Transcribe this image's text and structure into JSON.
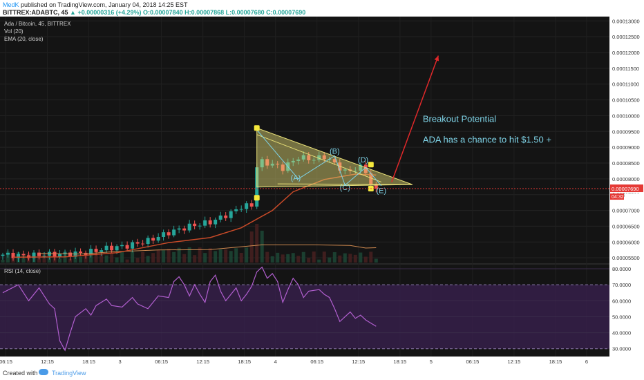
{
  "header": {
    "author": "MedK",
    "published": "published on TradingView.com, January 04, 2018 14:25 EST",
    "symbol": "BITTREX:ADABTC, 45",
    "change": "▲ +0.00000316 (+4.29%)",
    "ohlc": "O:0.00007840 H:0.00007868 L:0.00007680 C:0.00007690"
  },
  "legend": {
    "title": "Ada / Bitcoin, 45, BITTREX",
    "vol": "Vol (20)",
    "ema": "EMA (20, close)",
    "rsi": "RSI (14, close)"
  },
  "footer": {
    "created": "Created with",
    "brand": "TradingView"
  },
  "colors": {
    "up": "#26a69a",
    "down": "#ef5350",
    "triangle": "#e8e078",
    "annotation": "#7fd4e8",
    "arrow": "#e0282a",
    "ema": "#c84a28",
    "rsi": "#b25fd0",
    "rsi_band": "#3a2050",
    "handle": "#f5e83c",
    "price_tag": "#e53935"
  },
  "chart_data": {
    "type": "candlestick",
    "y_ticks": [
      "0.00013000",
      "0.00012500",
      "0.00012000",
      "0.00011500",
      "0.00011000",
      "0.00010500",
      "0.00010000",
      "0.00009500",
      "0.00009000",
      "0.00008500",
      "0.00008000",
      "0.00007500",
      "0.00007000",
      "0.00006500",
      "0.00006000",
      "0.00005500"
    ],
    "ylim": [
      5.35e-05,
      0.0001305
    ],
    "price_tag": "0.00007690",
    "price_tag2": "04:32",
    "price_tag_partial": "0.0000",
    "last_price": 7.69e-05,
    "x_ticks": [
      {
        "label": "06:15",
        "x": 0.6
      },
      {
        "label": "12:15",
        "x": 8.6
      },
      {
        "label": "18:15",
        "x": 16.6
      },
      {
        "label": "3",
        "x": 22.6
      },
      {
        "label": "06:15",
        "x": 30.6
      },
      {
        "label": "12:15",
        "x": 38.6
      },
      {
        "label": "18:15",
        "x": 46.6
      },
      {
        "label": "4",
        "x": 52.6
      },
      {
        "label": "06:15",
        "x": 60.6
      },
      {
        "label": "12:15",
        "x": 68.6
      },
      {
        "label": "18:15",
        "x": 76.6
      },
      {
        "label": "5",
        "x": 82.6
      },
      {
        "label": "06:15",
        "x": 90.6
      },
      {
        "label": "12:15",
        "x": 98.6
      },
      {
        "label": "18:15",
        "x": 106.6
      },
      {
        "label": "6",
        "x": 112.6
      }
    ],
    "xlim": [
      0,
      117
    ],
    "anchors": [
      [
        0,
        5.6e-05
      ],
      [
        4,
        5.56e-05
      ],
      [
        8,
        5.6e-05
      ],
      [
        12,
        5.61e-05
      ],
      [
        16,
        5.66e-05
      ],
      [
        20,
        5.8e-05
      ],
      [
        24,
        5.88e-05
      ],
      [
        28,
        6.04e-05
      ],
      [
        32,
        6.3e-05
      ],
      [
        36,
        6.5e-05
      ],
      [
        40,
        6.63e-05
      ],
      [
        44,
        6.92e-05
      ],
      [
        46,
        7.12e-05
      ],
      [
        48,
        7.16e-05
      ],
      [
        49,
        8.4e-05
      ],
      [
        50,
        8.54e-05
      ],
      [
        52,
        8.46e-05
      ],
      [
        54,
        8.34e-05
      ],
      [
        57,
        8.68e-05
      ],
      [
        60,
        8.62e-05
      ],
      [
        62,
        8.71e-05
      ],
      [
        64,
        8.48e-05
      ],
      [
        66,
        8.22e-05
      ],
      [
        68,
        8.31e-05
      ],
      [
        69,
        8.36e-05
      ],
      [
        70,
        8.24e-05
      ],
      [
        71,
        7.84e-05
      ],
      [
        72,
        7.69e-05
      ]
    ],
    "ema_points": [
      [
        2,
        5.52e-05
      ],
      [
        12,
        5.53e-05
      ],
      [
        22,
        5.66e-05
      ],
      [
        32,
        5.98e-05
      ],
      [
        40,
        6.14e-05
      ],
      [
        46,
        6.45e-05
      ],
      [
        52,
        7e-05
      ],
      [
        56,
        7.59e-05
      ],
      [
        62,
        7.98e-05
      ],
      [
        68,
        8.15e-05
      ],
      [
        72,
        8.12e-05
      ]
    ],
    "vol_points": [
      [
        7,
        5.64e-05
      ],
      [
        15,
        5.62e-05
      ],
      [
        21,
        5.69e-05
      ],
      [
        30,
        5.75e-05
      ],
      [
        40,
        5.76e-05
      ],
      [
        50,
        5.91e-05
      ],
      [
        60,
        5.91e-05
      ],
      [
        67,
        5.89e-05
      ],
      [
        70,
        5.81e-05
      ],
      [
        72,
        5.82e-05
      ]
    ],
    "triangle": {
      "top": [
        49,
        9.61e-05
      ],
      "bottom": [
        49,
        7.74e-05
      ],
      "apex": [
        79,
        7.82e-05
      ],
      "upper_line": [
        [
          49,
          9.4e-05
        ],
        [
          73,
          7.9e-05
        ]
      ],
      "lower_line": [
        [
          53,
          7.84e-05
        ],
        [
          79,
          7.82e-05
        ]
      ]
    },
    "zigzag": [
      [
        49,
        9.55e-05
      ],
      [
        57,
        8e-05
      ],
      [
        64,
        8.73e-05
      ],
      [
        66,
        7.8e-05
      ],
      [
        70,
        8.36e-05
      ],
      [
        73,
        7.78e-05
      ]
    ],
    "handles": [
      [
        49,
        9.61e-05
      ],
      [
        49,
        7.4e-05
      ],
      [
        71,
        8.45e-05
      ],
      [
        71,
        7.69e-05
      ]
    ],
    "arrow": {
      "from": [
        75,
        7.9e-05
      ],
      "to": [
        84,
        0.000119
      ]
    },
    "labels": [
      {
        "text": "(A)",
        "x": 56.5,
        "y": 7.95e-05
      },
      {
        "text": "(B)",
        "x": 64,
        "y": 8.8e-05
      },
      {
        "text": "(C)",
        "x": 66,
        "y": 7.65e-05
      },
      {
        "text": "(D)",
        "x": 69.5,
        "y": 8.52e-05
      },
      {
        "text": "(E)",
        "x": 73,
        "y": 7.55e-05
      }
    ],
    "annotation": [
      "Breakout Potential",
      "ADA has a chance to hit $1.50 +"
    ],
    "annotation_pos": {
      "x": 81,
      "y1": 9.8e-05,
      "y2": 9.15e-05
    },
    "rsi": {
      "ylim": [
        26,
        83
      ],
      "ticks": [
        "80.0000",
        "70.0000",
        "60.0000",
        "50.0000",
        "40.0000",
        "30.0000"
      ],
      "tick_values": [
        80,
        70,
        60,
        50,
        40,
        30
      ],
      "band": [
        30,
        70
      ],
      "points": [
        [
          0,
          65
        ],
        [
          3,
          70
        ],
        [
          5,
          60
        ],
        [
          7,
          68
        ],
        [
          9,
          58
        ],
        [
          10,
          55
        ],
        [
          11,
          35
        ],
        [
          12,
          29
        ],
        [
          13,
          40
        ],
        [
          14,
          50
        ],
        [
          16,
          55
        ],
        [
          17,
          51
        ],
        [
          18,
          57
        ],
        [
          20,
          61
        ],
        [
          21,
          57
        ],
        [
          23,
          56
        ],
        [
          25,
          62
        ],
        [
          26,
          58
        ],
        [
          28,
          55
        ],
        [
          30,
          63
        ],
        [
          32,
          62
        ],
        [
          33,
          72
        ],
        [
          34,
          75
        ],
        [
          35,
          70
        ],
        [
          36,
          63
        ],
        [
          37,
          70
        ],
        [
          38,
          64
        ],
        [
          39,
          59
        ],
        [
          40,
          72
        ],
        [
          41,
          76
        ],
        [
          42,
          66
        ],
        [
          43,
          60
        ],
        [
          44,
          64
        ],
        [
          45,
          68
        ],
        [
          46,
          60
        ],
        [
          47,
          64
        ],
        [
          48,
          69
        ],
        [
          49,
          78
        ],
        [
          50,
          81
        ],
        [
          51,
          74
        ],
        [
          52,
          77
        ],
        [
          53,
          72
        ],
        [
          54,
          59
        ],
        [
          55,
          67
        ],
        [
          56,
          74
        ],
        [
          57,
          70
        ],
        [
          58,
          62
        ],
        [
          59,
          66
        ],
        [
          61,
          67
        ],
        [
          62,
          64
        ],
        [
          63,
          62
        ],
        [
          64,
          55
        ],
        [
          65,
          47
        ],
        [
          66,
          50
        ],
        [
          67,
          53
        ],
        [
          68,
          49
        ],
        [
          69,
          51
        ],
        [
          70,
          48
        ],
        [
          71,
          46
        ],
        [
          72,
          44
        ]
      ]
    }
  }
}
